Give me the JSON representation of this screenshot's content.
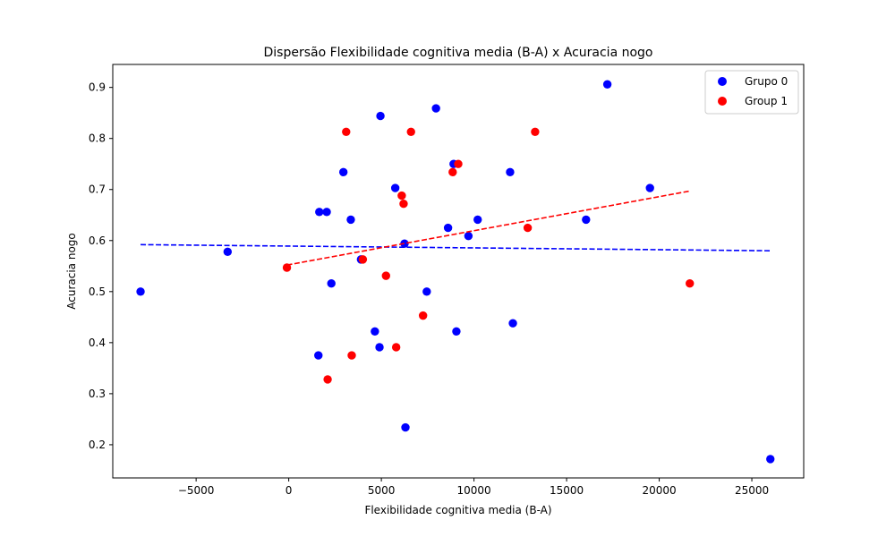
{
  "chart_data": {
    "type": "scatter",
    "title": "Dispersão Flexibilidade cognitiva media (B-A) x Acuracia nogo",
    "xlabel": "Flexibilidade cognitiva media (B-A)",
    "ylabel": "Acuracia nogo",
    "xlim": [
      -9500,
      27800
    ],
    "ylim": [
      0.135,
      0.945
    ],
    "xticks": [
      -5000,
      0,
      5000,
      10000,
      15000,
      20000,
      25000
    ],
    "xtick_labels": [
      "−5000",
      "0",
      "5000",
      "10000",
      "15000",
      "20000",
      "25000"
    ],
    "yticks": [
      0.2,
      0.3,
      0.4,
      0.5,
      0.6,
      0.7,
      0.8,
      0.9
    ],
    "ytick_labels": [
      "0.2",
      "0.3",
      "0.4",
      "0.5",
      "0.6",
      "0.7",
      "0.8",
      "0.9"
    ],
    "grid": false,
    "legend_position": "top-right",
    "series": [
      {
        "name": "Grupo 0",
        "color": "#0000ff",
        "points": [
          [
            -8000,
            0.5
          ],
          [
            -3300,
            0.578
          ],
          [
            1600,
            0.375
          ],
          [
            1650,
            0.656
          ],
          [
            2050,
            0.656
          ],
          [
            2300,
            0.516
          ],
          [
            2950,
            0.734
          ],
          [
            3350,
            0.641
          ],
          [
            3900,
            0.563
          ],
          [
            4650,
            0.422
          ],
          [
            4900,
            0.391
          ],
          [
            4950,
            0.844
          ],
          [
            5750,
            0.703
          ],
          [
            6250,
            0.594
          ],
          [
            6300,
            0.234
          ],
          [
            7450,
            0.5
          ],
          [
            7950,
            0.859
          ],
          [
            8600,
            0.625
          ],
          [
            8900,
            0.75
          ],
          [
            9050,
            0.422
          ],
          [
            9700,
            0.609
          ],
          [
            10200,
            0.641
          ],
          [
            11950,
            0.734
          ],
          [
            12100,
            0.438
          ],
          [
            16050,
            0.641
          ],
          [
            17200,
            0.906
          ],
          [
            19500,
            0.703
          ],
          [
            26000,
            0.172
          ]
        ],
        "trend": {
          "x": [
            -8000,
            26000
          ],
          "y": [
            0.592,
            0.58
          ]
        }
      },
      {
        "name": "Group 1",
        "color": "#ff0000",
        "points": [
          [
            -100,
            0.547
          ],
          [
            2100,
            0.328
          ],
          [
            3100,
            0.813
          ],
          [
            3400,
            0.375
          ],
          [
            4000,
            0.563
          ],
          [
            5250,
            0.531
          ],
          [
            5800,
            0.391
          ],
          [
            6100,
            0.688
          ],
          [
            6200,
            0.672
          ],
          [
            6600,
            0.813
          ],
          [
            7250,
            0.453
          ],
          [
            8850,
            0.734
          ],
          [
            9150,
            0.75
          ],
          [
            12900,
            0.625
          ],
          [
            13300,
            0.813
          ],
          [
            21650,
            0.516
          ]
        ],
        "trend": {
          "x": [
            -100,
            21650
          ],
          "y": [
            0.552,
            0.697
          ]
        }
      }
    ]
  }
}
